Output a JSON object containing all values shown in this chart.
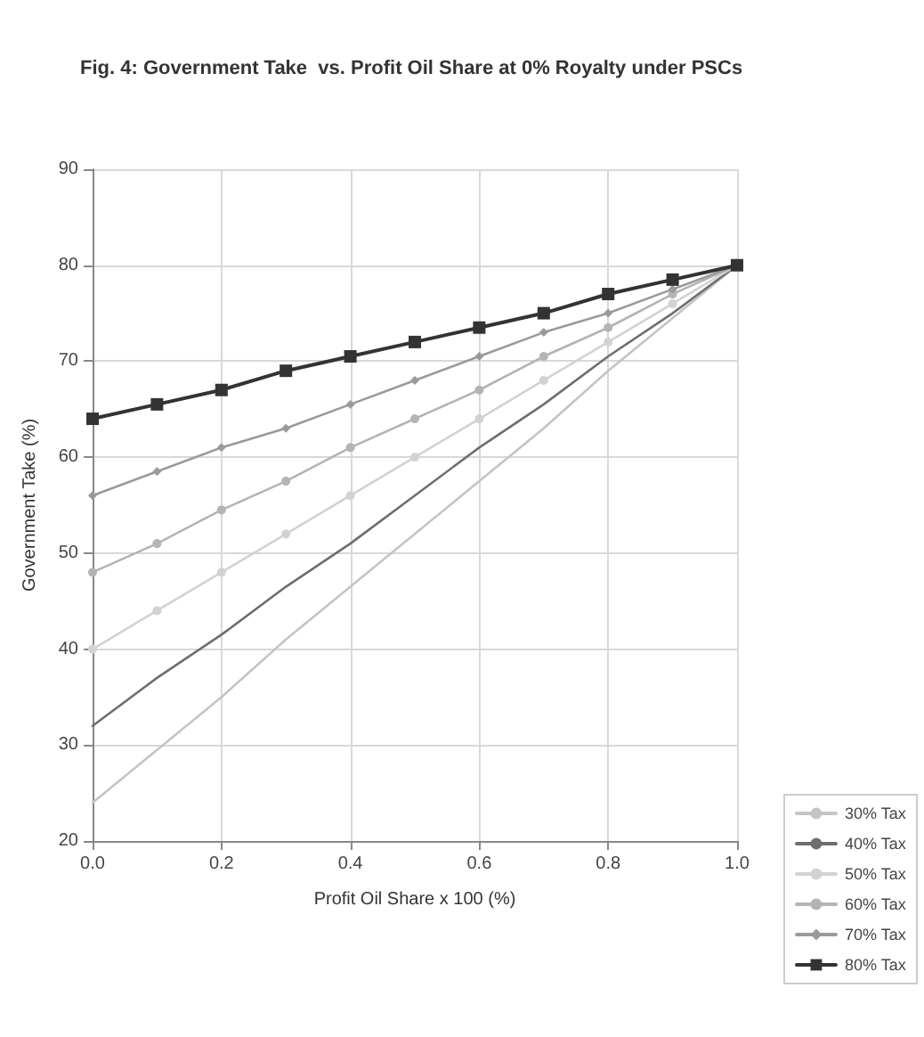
{
  "chart_data": {
    "type": "line",
    "title": "Fig. 4: Government Take  vs. Profit Oil Share at 0% Royalty under PSCs",
    "xlabel": "Profit Oil Share x 100 (%)",
    "ylabel": "Government Take (%)",
    "x": [
      0,
      0.1,
      0.2,
      0.3,
      0.4,
      0.5,
      0.6,
      0.7,
      0.8,
      0.9,
      1.0
    ],
    "series": [
      {
        "name": "30% Tax",
        "color": "#c4c4c4",
        "marker": "none",
        "values": [
          24,
          29.5,
          35,
          41,
          46.5,
          52,
          57.5,
          63,
          69,
          74.5,
          80
        ]
      },
      {
        "name": "40% Tax",
        "color": "#6e6e6e",
        "marker": "none",
        "values": [
          32,
          37,
          41.5,
          46.5,
          51,
          56,
          61,
          65.5,
          70.5,
          75,
          80
        ]
      },
      {
        "name": "50% Tax",
        "color": "#d2d2d2",
        "marker": "circle",
        "values": [
          40,
          44,
          48,
          52,
          56,
          60,
          64,
          68,
          72,
          76,
          80
        ]
      },
      {
        "name": "60% Tax",
        "color": "#b4b4b4",
        "marker": "circle",
        "values": [
          48,
          51,
          54.5,
          57.5,
          61,
          64,
          67,
          70.5,
          73.5,
          77,
          80
        ]
      },
      {
        "name": "70% Tax",
        "color": "#9a9a9a",
        "marker": "diamond",
        "values": [
          56,
          58.5,
          61,
          63,
          65.5,
          68,
          70.5,
          73,
          75,
          77.5,
          80
        ]
      },
      {
        "name": "80% Tax",
        "color": "#333333",
        "marker": "square",
        "values": [
          64,
          65.5,
          67,
          69,
          70.5,
          72,
          73.5,
          75,
          77,
          78.5,
          80
        ]
      }
    ],
    "xlim": [
      0,
      1
    ],
    "xticks": [
      {
        "value": 0,
        "label": "0.0"
      },
      {
        "value": 0.2,
        "label": "0.2"
      },
      {
        "value": 0.4,
        "label": "0.4"
      },
      {
        "value": 0.6,
        "label": "0.6"
      },
      {
        "value": 0.8,
        "label": "0.8"
      },
      {
        "value": 1,
        "label": "1.0"
      }
    ],
    "ylim": [
      20,
      90
    ],
    "yticks": [
      20,
      30,
      40,
      50,
      60,
      70,
      80,
      90
    ],
    "grid": true,
    "legend": "bottom right",
    "line_style": "solid"
  }
}
